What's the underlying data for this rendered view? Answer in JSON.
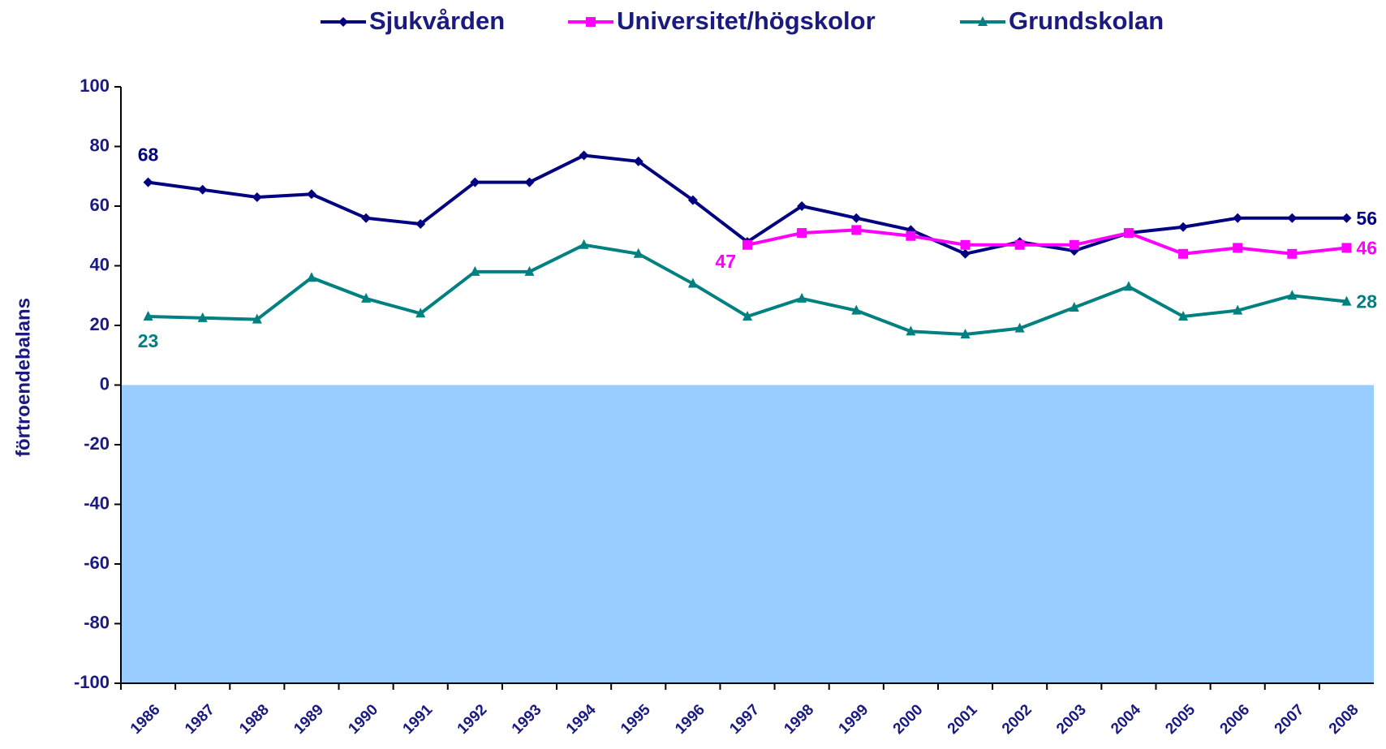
{
  "chart_data": {
    "type": "line",
    "y_label": "förtroendebalans",
    "categories": [
      "1986",
      "1987",
      "1988",
      "1989",
      "1990",
      "1991",
      "1992",
      "1993",
      "1994",
      "1995",
      "1996",
      "1997",
      "1998",
      "1999",
      "2000",
      "2001",
      "2002",
      "2003",
      "2004",
      "2005",
      "2006",
      "2007",
      "2008"
    ],
    "series": [
      {
        "name": "Sjukvården",
        "color": "#000080",
        "marker": "diamond",
        "values": [
          68,
          65.5,
          63,
          64,
          56,
          54,
          68,
          68,
          77,
          75,
          62,
          48,
          60,
          56,
          52,
          44,
          48,
          45,
          51,
          53,
          56,
          56,
          56
        ]
      },
      {
        "name": "Universitet/högskolor",
        "color": "#ff00ff",
        "marker": "square",
        "values": [
          null,
          null,
          null,
          null,
          null,
          null,
          null,
          null,
          null,
          null,
          null,
          47,
          51,
          52,
          50,
          47,
          47,
          47,
          51,
          44,
          46,
          44,
          46
        ]
      },
      {
        "name": "Grundskolan",
        "color": "#008080",
        "marker": "triangle",
        "values": [
          23,
          22.5,
          22,
          36,
          29,
          24,
          38,
          38,
          47,
          44,
          34,
          23,
          29,
          25,
          18,
          17,
          19,
          26,
          33,
          23,
          25,
          30,
          28
        ]
      }
    ],
    "ylim": [
      -100,
      100
    ],
    "yticks": [
      -100,
      -80,
      -60,
      -40,
      -20,
      0,
      20,
      40,
      60,
      80,
      100
    ],
    "legend": "top",
    "negative_fill": "#99ccff"
  }
}
